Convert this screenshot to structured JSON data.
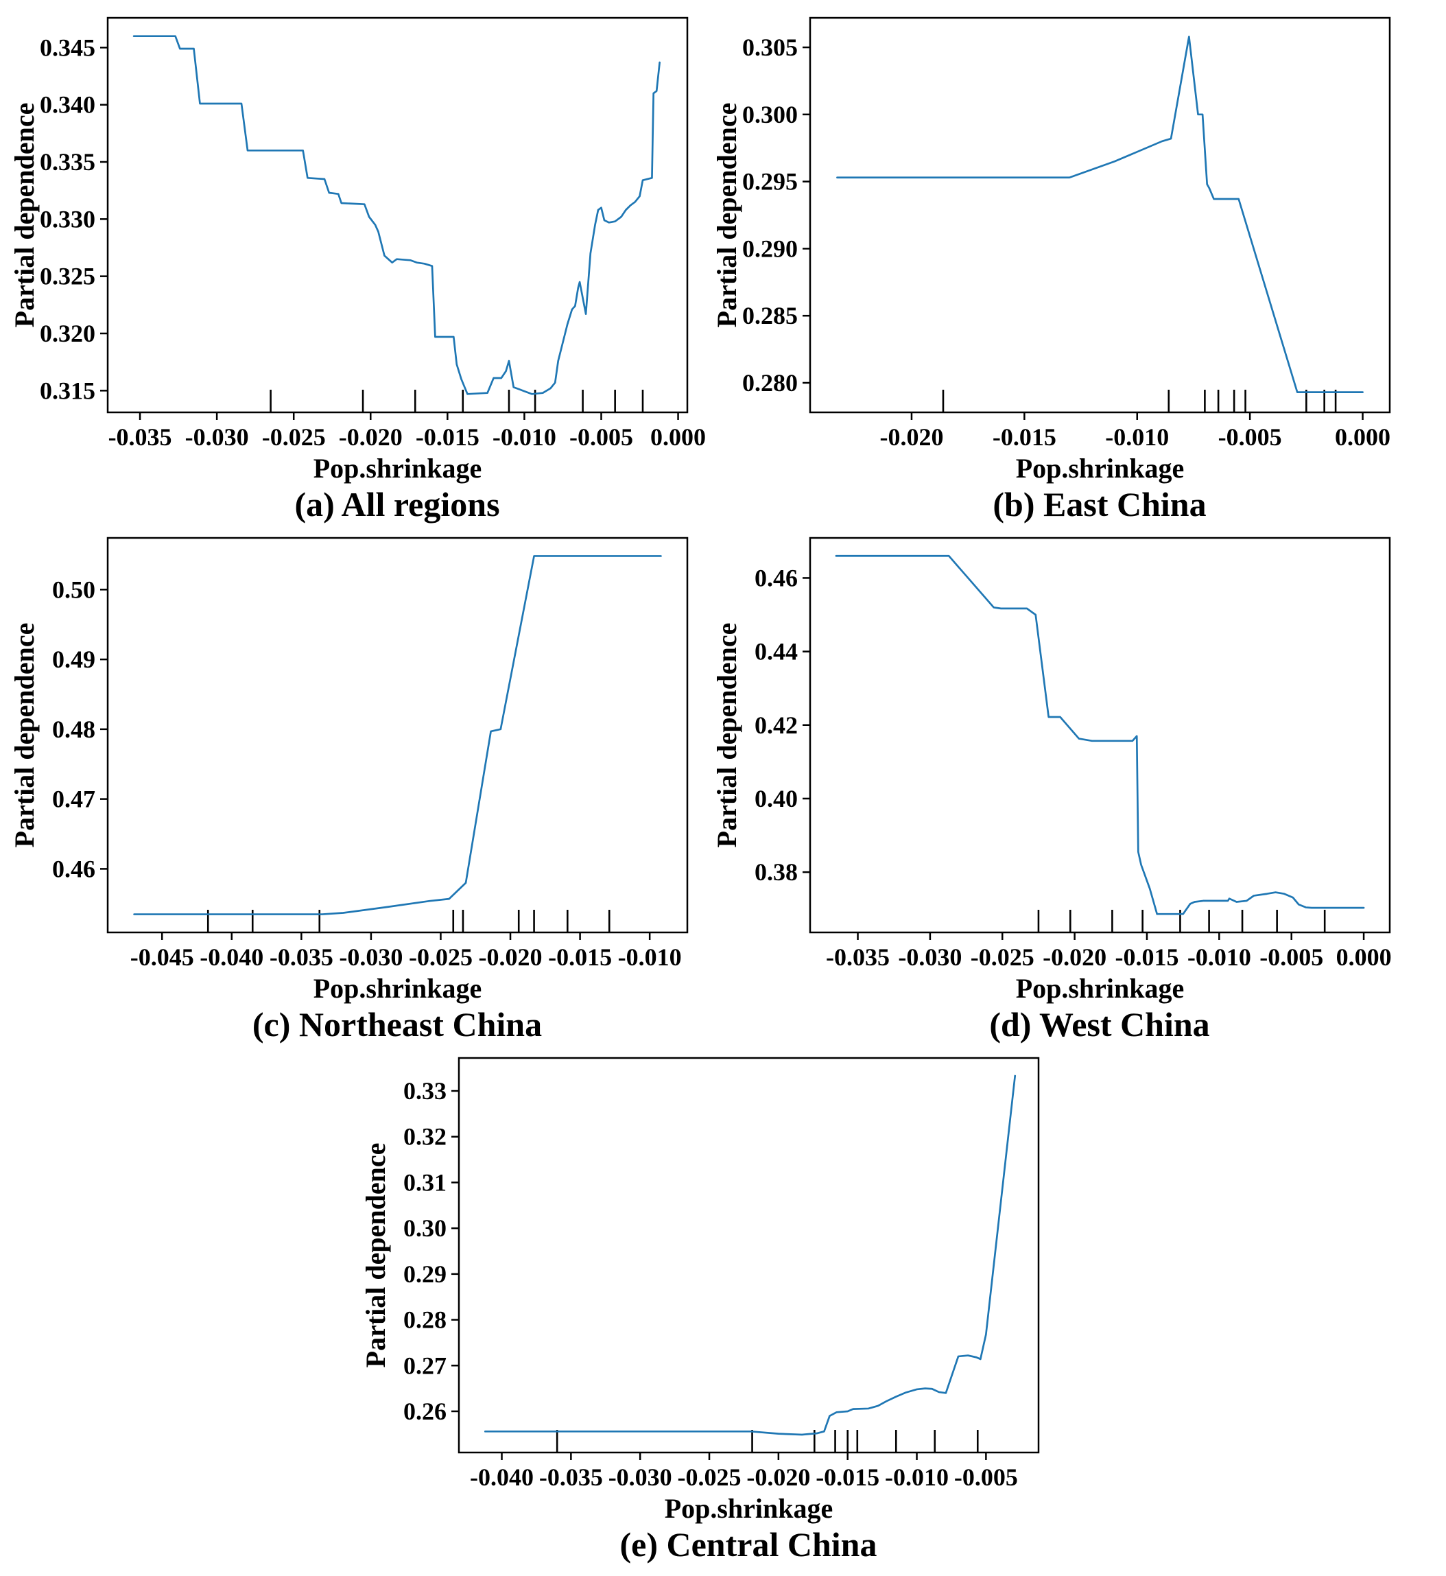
{
  "figure": {
    "background": "#ffffff",
    "line_color": "#1f77b4",
    "axis_color": "#000000",
    "font_color": "#000000"
  },
  "chart_data": [
    {
      "type": "line",
      "id": "a",
      "title": "(a) All regions",
      "xlabel": "Pop.shrinkage",
      "ylabel": "Partial dependence",
      "legend": "none",
      "grid": "off",
      "xlim": [
        -0.0371,
        0.0006
      ],
      "ylim": [
        0.3131,
        0.3476
      ],
      "xticks": [
        -0.035,
        -0.03,
        -0.025,
        -0.02,
        -0.015,
        -0.01,
        -0.005,
        0.0
      ],
      "xtick_labels": [
        "-0.035",
        "-0.030",
        "-0.025",
        "-0.020",
        "-0.015",
        "-0.010",
        "-0.005",
        "0.000"
      ],
      "yticks": [
        0.315,
        0.32,
        0.325,
        0.33,
        0.335,
        0.34,
        0.345
      ],
      "ytick_labels": [
        "0.315",
        "0.320",
        "0.325",
        "0.330",
        "0.335",
        "0.340",
        "0.345"
      ],
      "rug_x": [
        -0.0265,
        -0.0205,
        -0.0171,
        -0.014,
        -0.011,
        -0.0093,
        -0.0062,
        -0.0041,
        -0.0023
      ],
      "points": [
        [
          -0.0354,
          0.346
        ],
        [
          -0.0327,
          0.346
        ],
        [
          -0.0324,
          0.3449
        ],
        [
          -0.0315,
          0.3449
        ],
        [
          -0.0311,
          0.3401
        ],
        [
          -0.0284,
          0.3401
        ],
        [
          -0.028,
          0.336
        ],
        [
          -0.0244,
          0.336
        ],
        [
          -0.0241,
          0.3336
        ],
        [
          -0.023,
          0.3335
        ],
        [
          -0.0227,
          0.3323
        ],
        [
          -0.0221,
          0.3322
        ],
        [
          -0.0219,
          0.3314
        ],
        [
          -0.0204,
          0.3313
        ],
        [
          -0.0201,
          0.3302
        ],
        [
          -0.0197,
          0.3295
        ],
        [
          -0.0195,
          0.3289
        ],
        [
          -0.0191,
          0.3268
        ],
        [
          -0.0186,
          0.3262
        ],
        [
          -0.0183,
          0.3265
        ],
        [
          -0.0174,
          0.3264
        ],
        [
          -0.017,
          0.3262
        ],
        [
          -0.0165,
          0.3261
        ],
        [
          -0.016,
          0.3259
        ],
        [
          -0.0158,
          0.3197
        ],
        [
          -0.0146,
          0.3197
        ],
        [
          -0.0144,
          0.3173
        ],
        [
          -0.0141,
          0.316
        ],
        [
          -0.0137,
          0.3147
        ],
        [
          -0.0124,
          0.3148
        ],
        [
          -0.012,
          0.3161
        ],
        [
          -0.0115,
          0.3161
        ],
        [
          -0.0112,
          0.3167
        ],
        [
          -0.011,
          0.3176
        ],
        [
          -0.0107,
          0.3153
        ],
        [
          -0.0103,
          0.3151
        ],
        [
          -0.0095,
          0.3147
        ],
        [
          -0.0088,
          0.3148
        ],
        [
          -0.0083,
          0.3152
        ],
        [
          -0.008,
          0.3157
        ],
        [
          -0.0078,
          0.3176
        ],
        [
          -0.0075,
          0.3192
        ],
        [
          -0.0072,
          0.3208
        ],
        [
          -0.0069,
          0.3221
        ],
        [
          -0.0067,
          0.3224
        ],
        [
          -0.0065,
          0.324
        ],
        [
          -0.0064,
          0.3245
        ],
        [
          -0.006,
          0.3217
        ],
        [
          -0.0057,
          0.327
        ],
        [
          -0.0054,
          0.3295
        ],
        [
          -0.0052,
          0.3308
        ],
        [
          -0.005,
          0.331
        ],
        [
          -0.0048,
          0.3299
        ],
        [
          -0.0045,
          0.3297
        ],
        [
          -0.0041,
          0.3298
        ],
        [
          -0.0037,
          0.3302
        ],
        [
          -0.0034,
          0.3308
        ],
        [
          -0.0031,
          0.3312
        ],
        [
          -0.0028,
          0.3315
        ],
        [
          -0.0025,
          0.332
        ],
        [
          -0.0023,
          0.3334
        ],
        [
          -0.0017,
          0.3336
        ],
        [
          -0.0016,
          0.341
        ],
        [
          -0.0014,
          0.3412
        ],
        [
          -0.0012,
          0.3437
        ]
      ]
    },
    {
      "type": "line",
      "id": "b",
      "title": "(b) East China",
      "xlabel": "Pop.shrinkage",
      "ylabel": "Partial dependence",
      "legend": "none",
      "grid": "off",
      "xlim": [
        -0.0245,
        0.0012
      ],
      "ylim": [
        0.2778,
        0.3072
      ],
      "xticks": [
        -0.02,
        -0.015,
        -0.01,
        -0.005,
        0.0
      ],
      "xtick_labels": [
        "-0.020",
        "-0.015",
        "-0.010",
        "-0.005",
        "0.000"
      ],
      "yticks": [
        0.28,
        0.285,
        0.29,
        0.295,
        0.3,
        0.305
      ],
      "ytick_labels": [
        "0.280",
        "0.285",
        "0.290",
        "0.295",
        "0.300",
        "0.305"
      ],
      "rug_x": [
        -0.0186,
        -0.0086,
        -0.007,
        -0.0064,
        -0.0057,
        -0.0052,
        -0.0025,
        -0.0017,
        -0.0012
      ],
      "points": [
        [
          -0.0233,
          0.2953
        ],
        [
          -0.013,
          0.2953
        ],
        [
          -0.011,
          0.2965
        ],
        [
          -0.0089,
          0.298
        ],
        [
          -0.0085,
          0.2982
        ],
        [
          -0.0077,
          0.3058
        ],
        [
          -0.0073,
          0.3
        ],
        [
          -0.0071,
          0.3
        ],
        [
          -0.0069,
          0.2948
        ],
        [
          -0.0068,
          0.2945
        ],
        [
          -0.0066,
          0.2937
        ],
        [
          -0.0055,
          0.2937
        ],
        [
          -0.0029,
          0.2793
        ],
        [
          0.0,
          0.2793
        ]
      ]
    },
    {
      "type": "line",
      "id": "c",
      "title": "(c) Northeast China",
      "xlabel": "Pop.shrinkage",
      "ylabel": "Partial dependence",
      "legend": "none",
      "grid": "off",
      "xlim": [
        -0.0489,
        -0.0073
      ],
      "ylim": [
        0.4509,
        0.5074
      ],
      "xticks": [
        -0.045,
        -0.04,
        -0.035,
        -0.03,
        -0.025,
        -0.02,
        -0.015,
        -0.01
      ],
      "xtick_labels": [
        "-0.045",
        "-0.040",
        "-0.035",
        "-0.030",
        "-0.025",
        "-0.020",
        "-0.015",
        "-0.010"
      ],
      "yticks": [
        0.46,
        0.47,
        0.48,
        0.49,
        0.5
      ],
      "ytick_labels": [
        "0.46",
        "0.47",
        "0.48",
        "0.49",
        "0.50"
      ],
      "rug_x": [
        -0.0417,
        -0.0385,
        -0.0337,
        -0.0241,
        -0.0234,
        -0.0194,
        -0.0183,
        -0.0159,
        -0.0129
      ],
      "points": [
        [
          -0.047,
          0.4535
        ],
        [
          -0.0335,
          0.4535
        ],
        [
          -0.032,
          0.4537
        ],
        [
          -0.029,
          0.4545
        ],
        [
          -0.0258,
          0.4554
        ],
        [
          -0.0244,
          0.4557
        ],
        [
          -0.0232,
          0.458
        ],
        [
          -0.0214,
          0.4797
        ],
        [
          -0.0207,
          0.48
        ],
        [
          -0.0183,
          0.5048
        ],
        [
          -0.0092,
          0.5048
        ]
      ]
    },
    {
      "type": "line",
      "id": "d",
      "title": "(d) West China",
      "xlabel": "Pop.shrinkage",
      "ylabel": "Partial dependence",
      "legend": "none",
      "grid": "off",
      "xlim": [
        -0.0383,
        0.0018
      ],
      "ylim": [
        0.3636,
        0.4709
      ],
      "xticks": [
        -0.035,
        -0.03,
        -0.025,
        -0.02,
        -0.015,
        -0.01,
        -0.005,
        0.0
      ],
      "xtick_labels": [
        "-0.035",
        "-0.030",
        "-0.025",
        "-0.020",
        "-0.015",
        "-0.010",
        "-0.005",
        "0.000"
      ],
      "yticks": [
        0.38,
        0.4,
        0.42,
        0.44,
        0.46
      ],
      "ytick_labels": [
        "0.38",
        "0.40",
        "0.42",
        "0.44",
        "0.46"
      ],
      "rug_x": [
        -0.0225,
        -0.0203,
        -0.0174,
        -0.0153,
        -0.0127,
        -0.0107,
        -0.0084,
        -0.006,
        -0.0027
      ],
      "points": [
        [
          -0.0365,
          0.466
        ],
        [
          -0.0287,
          0.466
        ],
        [
          -0.0256,
          0.452
        ],
        [
          -0.0251,
          0.4517
        ],
        [
          -0.0233,
          0.4517
        ],
        [
          -0.0227,
          0.45
        ],
        [
          -0.0218,
          0.4222
        ],
        [
          -0.021,
          0.4222
        ],
        [
          -0.0197,
          0.4163
        ],
        [
          -0.0188,
          0.4157
        ],
        [
          -0.016,
          0.4157
        ],
        [
          -0.0157,
          0.417
        ],
        [
          -0.0156,
          0.3855
        ],
        [
          -0.0154,
          0.382
        ],
        [
          -0.0148,
          0.3755
        ],
        [
          -0.0144,
          0.37
        ],
        [
          -0.0143,
          0.3686
        ],
        [
          -0.0125,
          0.3686
        ],
        [
          -0.012,
          0.3714
        ],
        [
          -0.0117,
          0.3719
        ],
        [
          -0.0111,
          0.3722
        ],
        [
          -0.0094,
          0.3722
        ],
        [
          -0.0093,
          0.3728
        ],
        [
          -0.0088,
          0.3719
        ],
        [
          -0.0081,
          0.3722
        ],
        [
          -0.0076,
          0.3736
        ],
        [
          -0.0067,
          0.3741
        ],
        [
          -0.0061,
          0.3745
        ],
        [
          -0.0055,
          0.3741
        ],
        [
          -0.0049,
          0.3731
        ],
        [
          -0.0045,
          0.3712
        ],
        [
          -0.004,
          0.3704
        ],
        [
          -0.0036,
          0.3703
        ],
        [
          0.0,
          0.3703
        ]
      ]
    },
    {
      "type": "line",
      "id": "e",
      "title": "(e) Central China",
      "xlabel": "Pop.shrinkage",
      "ylabel": "Partial dependence",
      "legend": "none",
      "grid": "off",
      "xlim": [
        -0.0431,
        -0.0012
      ],
      "ylim": [
        0.251,
        0.3372
      ],
      "xticks": [
        -0.04,
        -0.035,
        -0.03,
        -0.025,
        -0.02,
        -0.015,
        -0.01,
        -0.005
      ],
      "xtick_labels": [
        "-0.040",
        "-0.035",
        "-0.030",
        "-0.025",
        "-0.020",
        "-0.015",
        "-0.010",
        "-0.005"
      ],
      "yticks": [
        0.26,
        0.27,
        0.28,
        0.29,
        0.3,
        0.31,
        0.32,
        0.33
      ],
      "ytick_labels": [
        "0.26",
        "0.27",
        "0.28",
        "0.29",
        "0.30",
        "0.31",
        "0.32",
        "0.33"
      ],
      "rug_x": [
        -0.036,
        -0.0219,
        -0.0174,
        -0.0159,
        -0.015,
        -0.0143,
        -0.0115,
        -0.0087,
        -0.0056
      ],
      "points": [
        [
          -0.0412,
          0.2556
        ],
        [
          -0.022,
          0.2556
        ],
        [
          -0.02,
          0.2551
        ],
        [
          -0.0183,
          0.2549
        ],
        [
          -0.0172,
          0.2552
        ],
        [
          -0.0167,
          0.2556
        ],
        [
          -0.0163,
          0.259
        ],
        [
          -0.0158,
          0.2598
        ],
        [
          -0.015,
          0.26
        ],
        [
          -0.0146,
          0.2605
        ],
        [
          -0.0135,
          0.2606
        ],
        [
          -0.0128,
          0.2612
        ],
        [
          -0.0122,
          0.2622
        ],
        [
          -0.0115,
          0.2632
        ],
        [
          -0.0108,
          0.2641
        ],
        [
          -0.01,
          0.2648
        ],
        [
          -0.0094,
          0.265
        ],
        [
          -0.0089,
          0.2649
        ],
        [
          -0.0084,
          0.2642
        ],
        [
          -0.0079,
          0.264
        ],
        [
          -0.007,
          0.272
        ],
        [
          -0.0063,
          0.2722
        ],
        [
          -0.0057,
          0.2718
        ],
        [
          -0.0054,
          0.2714
        ],
        [
          -0.005,
          0.2768
        ],
        [
          -0.0029,
          0.3333
        ]
      ]
    }
  ]
}
